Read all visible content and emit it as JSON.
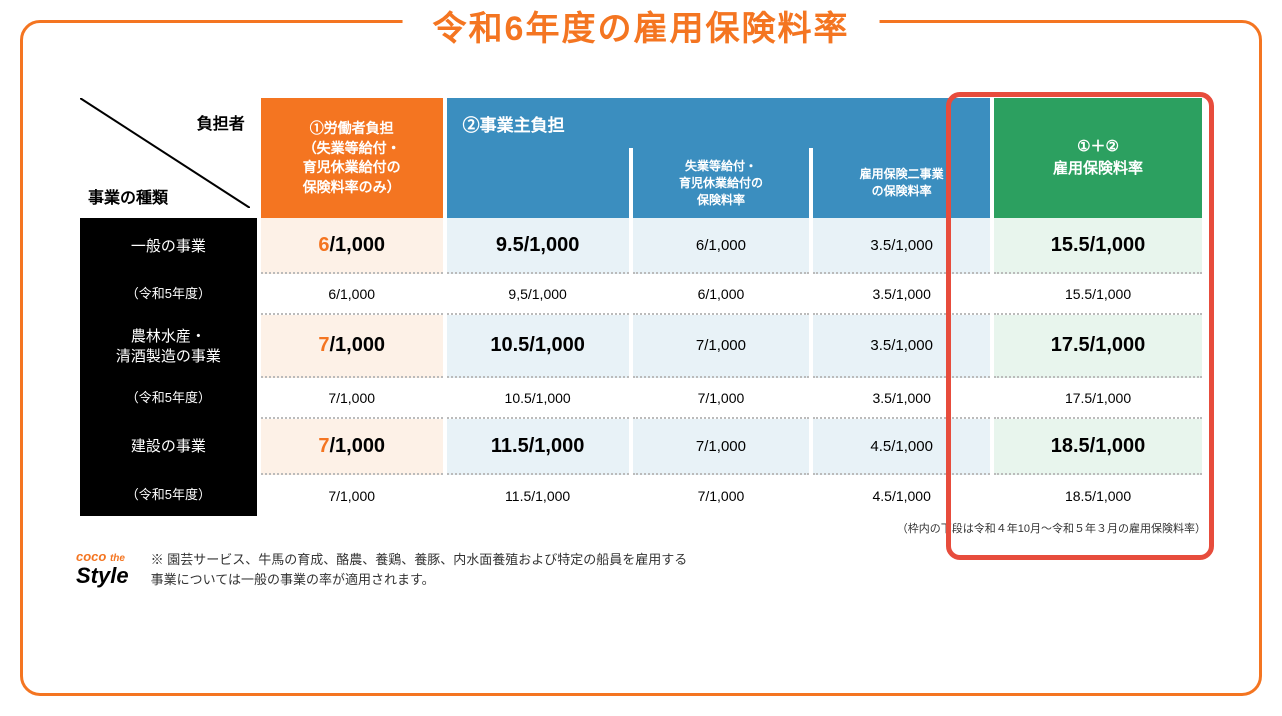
{
  "title": "令和6年度の雇用保険料率",
  "corner": {
    "top": "負担者",
    "bottom": "事業の種類"
  },
  "headers": {
    "worker": "①労働者負担\n（失業等給付・\n育児休業給付の\n保険料率のみ）",
    "employer_main": "②事業主負担",
    "employer_sub1": "失業等給付・\n育児休業給付の\n保険料率",
    "employer_sub2": "雇用保険二事業\nの保険料率",
    "total": "①＋②\n雇用保険料率"
  },
  "rows": [
    {
      "label": "一般の事業",
      "kind": "main",
      "worker": "6",
      "worker_d": "/1,000",
      "employer": "9.5/1,000",
      "sub1": "6/1,000",
      "sub2": "3.5/1,000",
      "total": "15.5/1,000"
    },
    {
      "label": "（令和5年度）",
      "kind": "prev",
      "worker": "6/1,000",
      "employer": "9,5/1,000",
      "sub1": "6/1,000",
      "sub2": "3.5/1,000",
      "total": "15.5/1,000"
    },
    {
      "label": "農林水産・\n清酒製造の事業",
      "kind": "main",
      "worker": "7",
      "worker_d": "/1,000",
      "employer": "10.5/1,000",
      "sub1": "7/1,000",
      "sub2": "3.5/1,000",
      "total": "17.5/1,000"
    },
    {
      "label": "（令和5年度）",
      "kind": "prev",
      "worker": "7/1,000",
      "employer": "10.5/1,000",
      "sub1": "7/1,000",
      "sub2": "3.5/1,000",
      "total": "17.5/1,000"
    },
    {
      "label": "建設の事業",
      "kind": "main",
      "worker": "7",
      "worker_d": "/1,000",
      "employer": "11.5/1,000",
      "sub1": "7/1,000",
      "sub2": "4.5/1,000",
      "total": "18.5/1,000"
    },
    {
      "label": "（令和5年度）",
      "kind": "prev",
      "worker": "7/1,000",
      "employer": "11.5/1,000",
      "sub1": "7/1,000",
      "sub2": "4.5/1,000",
      "total": "18.5/1,000"
    }
  ],
  "footnote": "（枠内の下段は令和４年10月～令和５年３月の雇用保険料率）",
  "logo": {
    "line1": "coco",
    "line2": "the",
    "line3": "Style"
  },
  "note": "※ 園芸サービス、牛馬の育成、酪農、養鶏、養豚、内水面養殖および特定の船員を雇用する\n事業については一般の事業の率が適用されます。",
  "colors": {
    "brand": "#f47521",
    "blue": "#3b8ebf",
    "green": "#2ca060",
    "orange_bg": "#fdf1e7",
    "blue_bg": "#e8f2f7",
    "green_bg": "#e8f5ed",
    "red_border": "#e74c3c"
  }
}
